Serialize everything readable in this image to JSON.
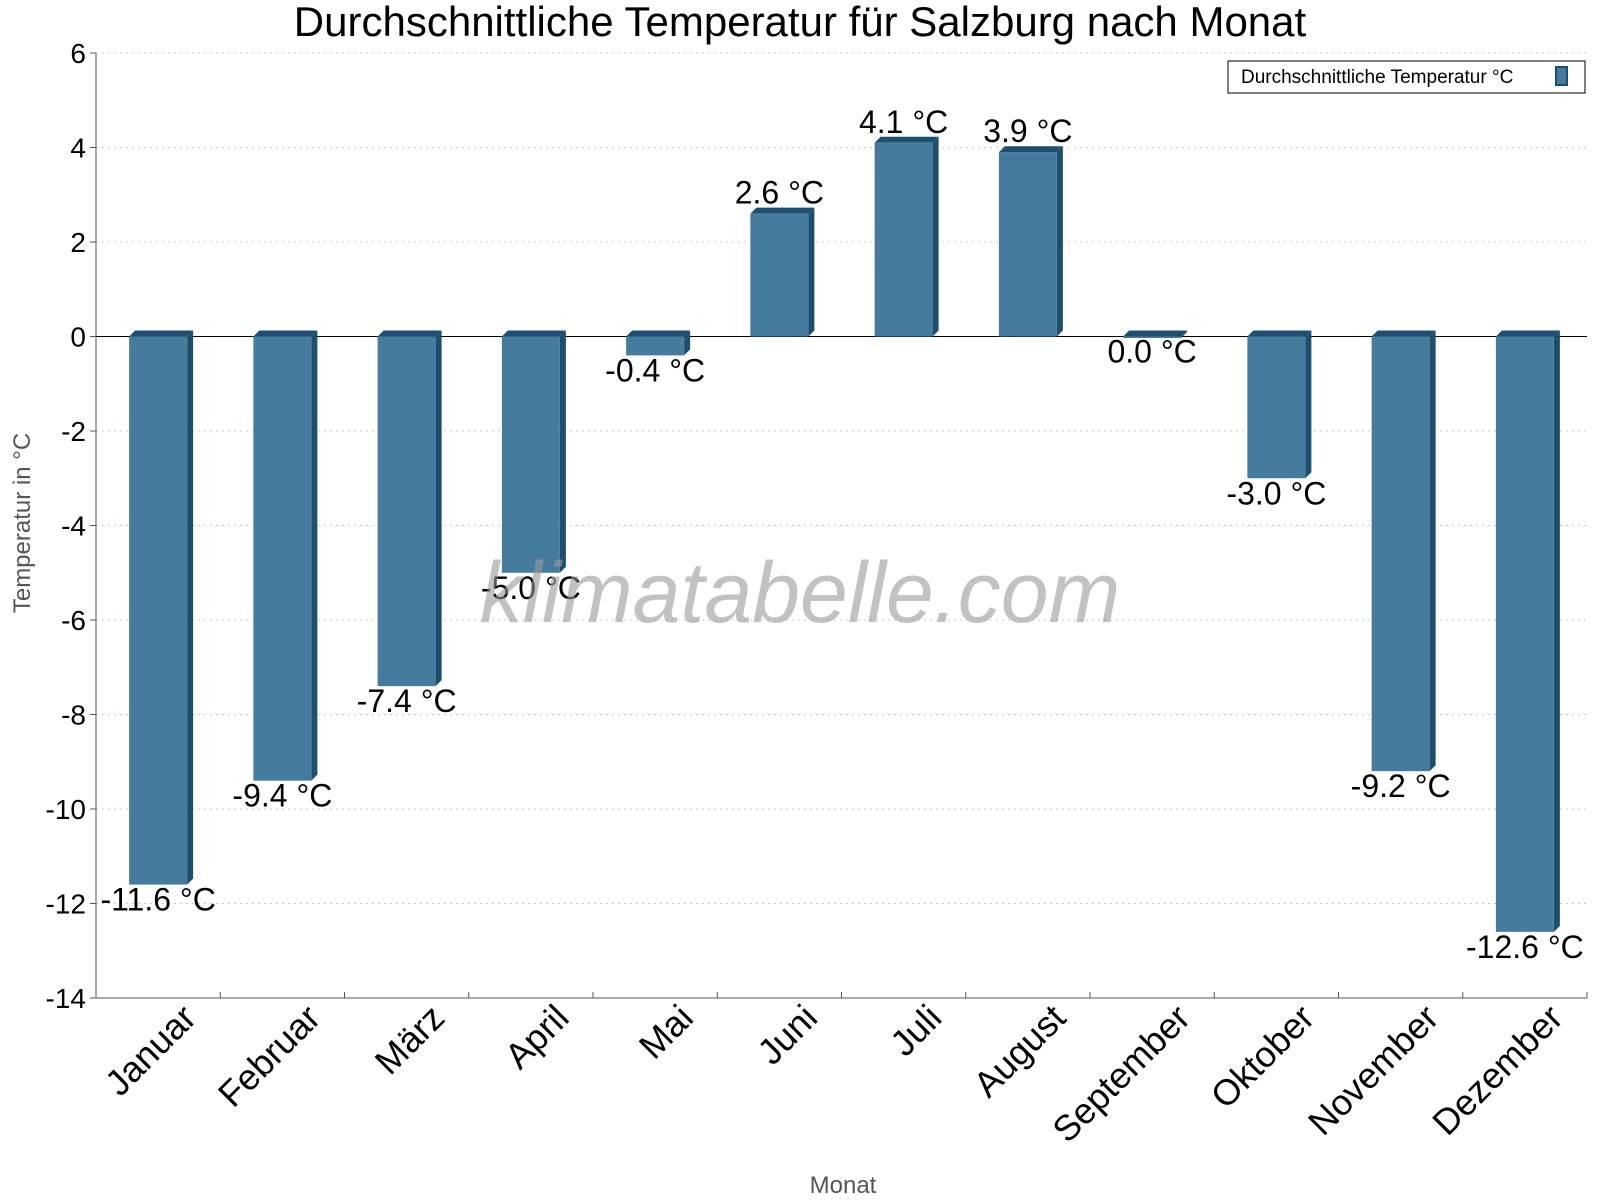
{
  "chart_data": {
    "type": "bar",
    "title": "Durchschnittliche Temperatur für Salzburg nach Monat",
    "xlabel": "Monat",
    "ylabel": "Temperatur in °C",
    "ylim": [
      -14,
      6
    ],
    "yticks": [
      6,
      4,
      2,
      0,
      -2,
      -4,
      -6,
      -8,
      -10,
      -12,
      -14
    ],
    "grid": true,
    "legend_position": "top-right",
    "categories": [
      "Januar",
      "Februar",
      "März",
      "April",
      "Mai",
      "Juni",
      "Juli",
      "August",
      "September",
      "Oktober",
      "November",
      "Dezember"
    ],
    "series": [
      {
        "name": "Durchschnittliche Temperatur °C",
        "values": [
          -11.6,
          -9.4,
          -7.4,
          -5.0,
          -0.4,
          2.6,
          4.1,
          3.9,
          0.0,
          -3.0,
          -9.2,
          -12.6
        ],
        "labels": [
          "-11.6 °C",
          "-9.4 °C",
          "-7.4 °C",
          "-5.0 °C",
          "-0.4 °C",
          "2.6 °C",
          "4.1 °C",
          "3.9 °C",
          "0.0 °C",
          "-3.0 °C",
          "-9.2 °C",
          "-12.6 °C"
        ]
      }
    ],
    "colors": {
      "bar_front": "#457b9d",
      "bar_side": "#1d4e6e",
      "bar_top": "#1f4f70"
    }
  },
  "watermark": "klimatabelle.com"
}
